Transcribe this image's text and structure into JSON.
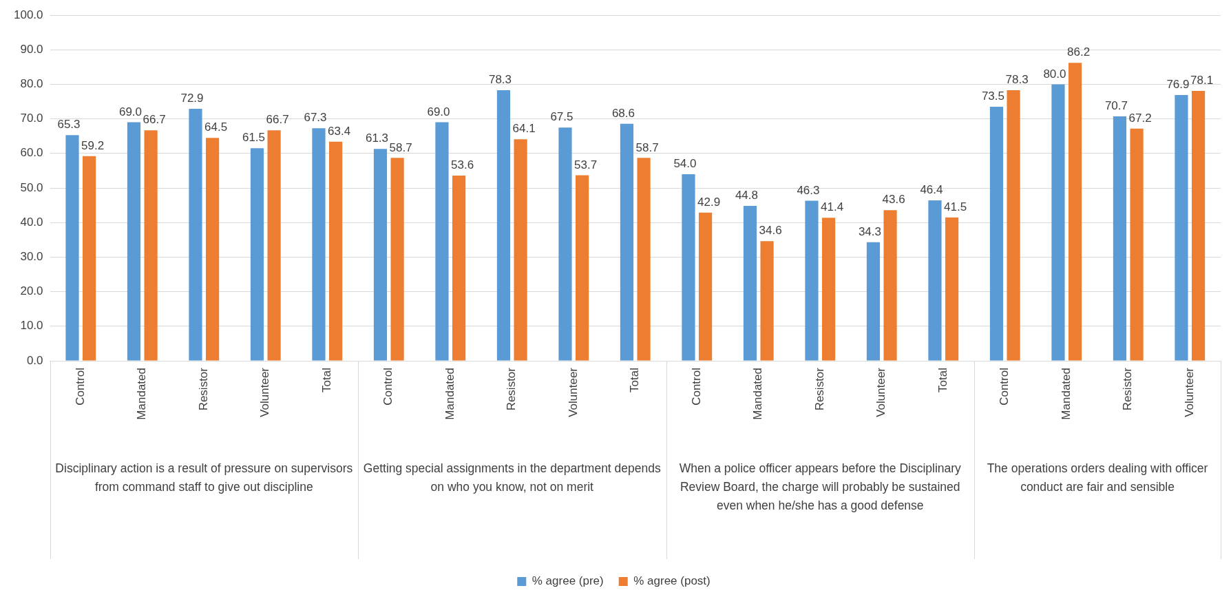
{
  "chart_data": {
    "type": "bar",
    "categories": [
      "Control",
      "Mandated",
      "Resistor",
      "Volunteer",
      "Total",
      "Control",
      "Mandated",
      "Resistor",
      "Volunteer",
      "Total",
      "Control",
      "Mandated",
      "Resistor",
      "Volunteer",
      "Total",
      "Control",
      "Mandated",
      "Resistor",
      "Volunteer"
    ],
    "series": [
      {
        "name": "% agree (pre)",
        "color": "#5b9bd5",
        "values": [
          65.3,
          69.0,
          72.9,
          61.5,
          67.3,
          61.3,
          69.0,
          78.3,
          67.5,
          68.6,
          54.0,
          44.8,
          46.3,
          34.3,
          46.4,
          73.5,
          80.0,
          70.7,
          76.9
        ],
        "value_labels": [
          "65.3",
          "69.0",
          "72.9",
          "61.5",
          "67.3",
          "61.3",
          "69.0",
          "78.3",
          "67.5",
          "68.6",
          "54.0",
          "44.8",
          "46.3",
          "34.3",
          "46.4",
          "73.5",
          "80.0",
          "70.7",
          "76.9"
        ]
      },
      {
        "name": "% agree (post)",
        "color": "#ed7d31",
        "values": [
          59.2,
          66.7,
          64.5,
          66.7,
          63.4,
          58.7,
          53.6,
          64.1,
          53.7,
          58.7,
          42.9,
          34.6,
          41.4,
          43.6,
          41.5,
          78.3,
          86.2,
          67.2,
          78.1
        ],
        "value_labels": [
          "59.2",
          "66.7",
          "64.5",
          "66.7",
          "63.4",
          "58.7",
          "53.6",
          "64.1",
          "53.7",
          "58.7",
          "42.9",
          "34.6",
          "41.4",
          "43.6",
          "41.5",
          "78.3",
          "86.2",
          "67.2",
          "78.1"
        ]
      }
    ],
    "ylim": [
      0,
      100
    ],
    "yticks": [
      {
        "value": 0,
        "label": "0.0"
      },
      {
        "value": 10,
        "label": "10.0"
      },
      {
        "value": 20,
        "label": "20.0"
      },
      {
        "value": 30,
        "label": "30.0"
      },
      {
        "value": 40,
        "label": "40.0"
      },
      {
        "value": 50,
        "label": "50.0"
      },
      {
        "value": 60,
        "label": "60.0"
      },
      {
        "value": 70,
        "label": "70.0"
      },
      {
        "value": 80,
        "label": "80.0"
      },
      {
        "value": 90,
        "label": "90.0"
      },
      {
        "value": 100,
        "label": "100.0"
      }
    ],
    "annotations": [
      "Disciplinary action is a result of pressure on supervisors from command staff to give out discipline",
      "Getting special assignments in the department depends on who you know, not on merit",
      "When a police officer appears before the Disciplinary Review Board, the charge will probably be sustained even when he/she has a good defense",
      "The operations orders dealing with officer conduct are fair and sensible"
    ],
    "grid": "y",
    "legend": "bottom"
  }
}
